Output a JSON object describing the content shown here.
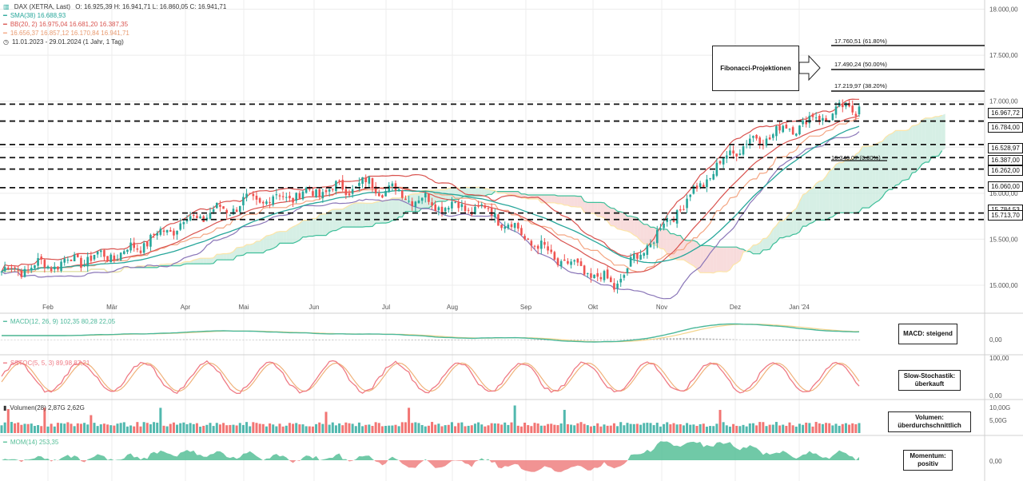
{
  "header": {
    "title": "DAX (XETRA, Last)",
    "ohlc": "O: 16.925,39  H: 16.941,71  L: 16.860,05  C: 16.941,71",
    "sma": "SMA(38)  16.688,93",
    "bb": "BB(20, 2)  16.975,04  16.681,20  16.387,35",
    "ichimoku": "16.656,37  16.857,12  16.170,84  16.941,71",
    "range": "11.01.2023 - 29.01.2024  (1 Jahr, 1 Tag)",
    "macd": "MACD(12, 26, 9)  102,35  80,28  22,05",
    "stoch": "SSTOC(5, 5, 3)  89,98  87,21",
    "volume": "Volumen(28)  2,87G  2,62G",
    "mom": "MOM(14)  253,35"
  },
  "boxes": {
    "fib": "Fibonacci-Projektionen",
    "macd": "MACD: steigend",
    "stoch": "Slow-Stochastik: überkauft",
    "volume": "Volumen: überdurchschnittlich",
    "mom": "Momentum: positiv"
  },
  "fib_labels": [
    "17.760,51 (61.80%)",
    "17.490,24 (50.00%)",
    "17.219,97 (38.20%)",
    "16.346,07 (0.00%)"
  ],
  "levels": [
    "16.967,72",
    "16.784,00",
    "16.528,97",
    "16.387,00",
    "16.262,00",
    "16.060,00",
    "15.784,53",
    "15.713,70"
  ],
  "colors": {
    "price_up": "#26a69a",
    "price_down": "#ef5350",
    "sma": "#26a69a",
    "bb": "#d9534f",
    "cloud_green": "#c8eadc",
    "cloud_red": "#f6d0d0",
    "kijun": "#f4a582",
    "lagging": "#fde5a8",
    "macd": "#4bb89a",
    "stoch_k": "#ef7a85",
    "stoch_d": "#f0b27a",
    "mom_pos": "#57bf98",
    "mom_neg": "#ef8080"
  },
  "chart_data": [
    {
      "type": "candlestick",
      "title": "DAX (XETRA, Last)",
      "x_ticks": [
        "Feb",
        "Mär",
        "Apr",
        "Mai",
        "Jun",
        "Jul",
        "Aug",
        "Sep",
        "Okt",
        "Nov",
        "Dez",
        "Jan '24"
      ],
      "y_ticks": [
        "15.000,00",
        "15.500,00",
        "16.000,00",
        "16.500,00",
        "17.000,00",
        "17.500,00",
        "18.000,00"
      ],
      "ylim": [
        14800,
        18100
      ],
      "monthly_close": [
        15150,
        15250,
        15350,
        15700,
        15900,
        16000,
        16100,
        15900,
        15800,
        15300,
        15000,
        15800,
        16500,
        16750,
        16950
      ],
      "last": 16941.71,
      "fibonacci": {
        "61.8%": 17760.51,
        "50%": 17490.24,
        "38.2%": 17219.97,
        "0%": 16346.07
      },
      "horizontal_levels": [
        16967.72,
        16784.0,
        16528.97,
        16387.0,
        16262.0,
        16060.0,
        15784.53,
        15713.7
      ]
    },
    {
      "type": "line",
      "title": "MACD(12, 26, 9)",
      "y_ticks": [
        "0,00"
      ],
      "values": [
        102.35,
        80.28,
        22.05
      ]
    },
    {
      "type": "line",
      "title": "SSTOC(5, 5, 3)",
      "y_ticks": [
        "100,00",
        "0,00"
      ],
      "ylim": [
        0,
        100
      ],
      "values": [
        89.98,
        87.21
      ]
    },
    {
      "type": "bar",
      "title": "Volumen(28)",
      "y_ticks": [
        "10,00G",
        "5,00G"
      ],
      "values": [
        2.87,
        2.62
      ]
    },
    {
      "type": "area",
      "title": "MOM(14)",
      "y_ticks": [
        "0,00"
      ],
      "values": [
        253.35
      ]
    }
  ]
}
